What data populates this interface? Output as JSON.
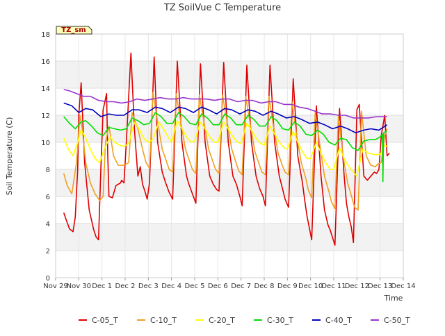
{
  "chart_data": {
    "type": "line",
    "title": "TZ SoilVue C Temperature",
    "ylabel": "Soil Temperature (C)",
    "xlabel": "Time",
    "station_label": "TZ_sm",
    "ylim": [
      0,
      18
    ],
    "yticks": [
      0,
      2,
      4,
      6,
      8,
      10,
      12,
      14,
      16,
      18
    ],
    "xlim": [
      0,
      15
    ],
    "x_unit": "days from Nov 29",
    "xticks": [
      {
        "value": 0,
        "label": "Nov 29"
      },
      {
        "value": 1,
        "label": "Nov 30"
      },
      {
        "value": 2,
        "label": "Dec 1"
      },
      {
        "value": 3,
        "label": "Dec 2"
      },
      {
        "value": 4,
        "label": "Dec 3"
      },
      {
        "value": 5,
        "label": "Dec 4"
      },
      {
        "value": 6,
        "label": "Dec 5"
      },
      {
        "value": 7,
        "label": "Dec 6"
      },
      {
        "value": 8,
        "label": "Dec 7"
      },
      {
        "value": 9,
        "label": "Dec 8"
      },
      {
        "value": 10,
        "label": "Dec 9"
      },
      {
        "value": 11,
        "label": "Dec 10"
      },
      {
        "value": 12,
        "label": "Dec 11"
      },
      {
        "value": 13,
        "label": "Dec 12"
      },
      {
        "value": 14,
        "label": "Dec 13"
      },
      {
        "value": 15,
        "label": "Dec 14"
      }
    ],
    "grid": true,
    "legend_position": "bottom",
    "series": [
      {
        "name": "C-05_T",
        "color": "#dd0000",
        "x": [
          0.35,
          0.45,
          0.6,
          0.75,
          0.85,
          0.95,
          1.0,
          1.1,
          1.25,
          1.45,
          1.65,
          1.75,
          1.85,
          1.95,
          2.05,
          2.2,
          2.25,
          2.3,
          2.45,
          2.6,
          2.7,
          2.8,
          2.85,
          2.95,
          3.05,
          3.25,
          3.4,
          3.55,
          3.65,
          3.75,
          3.85,
          3.95,
          4.05,
          4.25,
          4.4,
          4.6,
          4.75,
          4.9,
          5.05,
          5.25,
          5.45,
          5.65,
          5.75,
          5.9,
          6.05,
          6.25,
          6.45,
          6.65,
          6.8,
          6.95,
          7.05,
          7.25,
          7.45,
          7.65,
          7.8,
          7.95,
          8.05,
          8.25,
          8.45,
          8.65,
          8.8,
          8.95,
          9.05,
          9.25,
          9.45,
          9.65,
          9.8,
          9.9,
          10.05,
          10.25,
          10.45,
          10.65,
          10.75,
          10.85,
          11.05,
          11.25,
          11.45,
          11.6,
          11.75,
          11.85,
          12.05,
          12.25,
          12.45,
          12.55,
          12.65,
          12.75,
          12.85,
          13.0,
          13.1,
          13.3,
          13.45,
          13.6,
          13.75,
          13.85,
          13.95,
          14.05,
          14.2,
          14.3,
          14.4
        ],
        "y": [
          4.8,
          4.3,
          3.6,
          3.4,
          4.5,
          8.0,
          12.0,
          14.4,
          8.5,
          5.0,
          3.5,
          3.0,
          2.8,
          8.0,
          12.4,
          13.6,
          9.0,
          6.0,
          5.9,
          6.8,
          6.9,
          7.0,
          7.2,
          7.0,
          10.0,
          16.6,
          11.0,
          7.5,
          8.2,
          6.9,
          6.4,
          5.8,
          7.0,
          16.3,
          10.0,
          7.8,
          7.0,
          6.3,
          5.8,
          16.0,
          10.0,
          7.5,
          6.9,
          6.2,
          5.5,
          15.8,
          10.0,
          7.5,
          6.9,
          6.5,
          6.4,
          15.9,
          10.0,
          7.5,
          6.9,
          6.0,
          5.3,
          15.7,
          10.0,
          7.5,
          6.6,
          6.0,
          5.3,
          15.7,
          10.0,
          7.5,
          6.5,
          5.8,
          5.2,
          14.7,
          9.0,
          7.0,
          5.7,
          4.5,
          2.8,
          12.7,
          7.5,
          5.0,
          3.9,
          3.5,
          2.4,
          12.5,
          7.5,
          5.5,
          4.5,
          3.8,
          2.6,
          12.4,
          12.8,
          7.5,
          7.2,
          7.5,
          7.8,
          7.7,
          8.0,
          10.5,
          12.0,
          9.0,
          9.2
        ]
      },
      {
        "name": "C-10_T",
        "color": "#f0a020",
        "x": [
          0.35,
          0.5,
          0.7,
          0.9,
          1.05,
          1.15,
          1.3,
          1.5,
          1.7,
          1.9,
          2.05,
          2.15,
          2.3,
          2.5,
          2.7,
          2.9,
          3.05,
          3.15,
          3.3,
          3.55,
          3.75,
          3.9,
          4.05,
          4.2,
          4.4,
          4.6,
          4.8,
          4.9,
          5.05,
          5.2,
          5.4,
          5.6,
          5.8,
          5.9,
          6.05,
          6.2,
          6.4,
          6.6,
          6.8,
          6.9,
          7.05,
          7.2,
          7.4,
          7.6,
          7.8,
          7.9,
          8.05,
          8.2,
          8.4,
          8.6,
          8.8,
          8.9,
          9.05,
          9.2,
          9.4,
          9.6,
          9.8,
          9.9,
          10.05,
          10.2,
          10.4,
          10.6,
          10.8,
          10.9,
          11.05,
          11.2,
          11.4,
          11.6,
          11.8,
          11.9,
          12.05,
          12.2,
          12.4,
          12.6,
          12.8,
          12.9,
          13.05,
          13.2,
          13.4,
          13.6,
          13.8,
          13.9,
          14.05,
          14.2,
          14.3
        ],
        "y": [
          7.7,
          6.8,
          6.2,
          8.5,
          12.0,
          11.0,
          8.5,
          7.0,
          6.2,
          5.7,
          6.0,
          10.0,
          11.2,
          9.0,
          8.3,
          8.3,
          8.4,
          8.5,
          12.2,
          11.0,
          9.5,
          8.5,
          8.1,
          13.7,
          11.5,
          9.5,
          8.5,
          8.0,
          7.8,
          13.6,
          11.5,
          9.5,
          8.5,
          8.0,
          7.7,
          13.5,
          11.5,
          9.5,
          8.5,
          8.0,
          7.7,
          13.5,
          11.5,
          9.5,
          8.4,
          7.9,
          7.6,
          13.4,
          11.3,
          9.3,
          8.3,
          7.8,
          7.6,
          13.4,
          11.2,
          9.2,
          8.2,
          7.8,
          7.6,
          13.0,
          10.5,
          8.5,
          7.3,
          6.5,
          5.9,
          12.2,
          9.8,
          7.5,
          6.3,
          5.6,
          5.1,
          12.0,
          9.0,
          7.0,
          5.8,
          5.2,
          5.0,
          12.3,
          9.0,
          8.3,
          8.2,
          8.4,
          8.5,
          10.5,
          11.0
        ]
      },
      {
        "name": "C-20_T",
        "color": "#ffff00",
        "x": [
          0.35,
          0.55,
          0.75,
          0.95,
          1.1,
          1.25,
          1.5,
          1.7,
          1.9,
          2.1,
          2.35,
          2.55,
          2.75,
          2.95,
          3.15,
          3.4,
          3.6,
          3.8,
          4.0,
          4.2,
          4.45,
          4.65,
          4.85,
          5.0,
          5.25,
          5.45,
          5.65,
          5.85,
          6.0,
          6.25,
          6.45,
          6.65,
          6.85,
          7.0,
          7.25,
          7.45,
          7.65,
          7.85,
          8.0,
          8.25,
          8.45,
          8.65,
          8.85,
          9.0,
          9.25,
          9.45,
          9.65,
          9.85,
          10.0,
          10.25,
          10.45,
          10.65,
          10.85,
          11.0,
          11.25,
          11.45,
          11.65,
          11.85,
          12.0,
          12.25,
          12.45,
          12.65,
          12.85,
          13.0,
          13.25,
          13.5,
          13.75,
          14.0,
          14.2,
          14.3
        ],
        "y": [
          10.3,
          9.5,
          9.0,
          10.0,
          10.9,
          10.5,
          9.5,
          8.8,
          8.5,
          9.5,
          10.4,
          10.0,
          9.8,
          9.7,
          9.9,
          11.5,
          11.0,
          10.3,
          10.0,
          10.2,
          11.5,
          11.0,
          10.4,
          10.0,
          11.6,
          11.0,
          10.4,
          10.0,
          10.1,
          11.5,
          11.0,
          10.4,
          10.0,
          10.0,
          11.5,
          11.0,
          10.4,
          10.0,
          9.9,
          11.4,
          10.9,
          10.3,
          9.9,
          9.8,
          11.2,
          10.6,
          10.0,
          9.6,
          9.5,
          10.8,
          10.0,
          9.3,
          8.8,
          8.8,
          10.0,
          9.2,
          8.5,
          8.0,
          8.0,
          9.6,
          8.8,
          8.2,
          7.8,
          7.5,
          9.5,
          9.2,
          9.1,
          9.1,
          9.8,
          9.7
        ]
      },
      {
        "name": "C-30_T",
        "color": "#00dd00",
        "x": [
          0.35,
          0.6,
          0.85,
          1.1,
          1.3,
          1.55,
          1.8,
          2.05,
          2.3,
          2.55,
          2.8,
          3.05,
          3.3,
          3.55,
          3.8,
          4.05,
          4.3,
          4.55,
          4.8,
          5.05,
          5.3,
          5.55,
          5.8,
          6.05,
          6.3,
          6.55,
          6.8,
          7.05,
          7.3,
          7.55,
          7.8,
          8.05,
          8.3,
          8.55,
          8.8,
          9.05,
          9.3,
          9.55,
          9.8,
          10.05,
          10.3,
          10.55,
          10.8,
          11.05,
          11.3,
          11.55,
          11.8,
          12.05,
          12.3,
          12.55,
          12.8,
          13.05,
          13.3,
          13.55,
          13.8,
          14.0,
          14.1,
          14.12,
          14.15,
          14.25,
          14.3
        ],
        "y": [
          11.9,
          11.4,
          11.0,
          11.5,
          11.6,
          11.2,
          10.7,
          10.5,
          11.1,
          11.0,
          10.9,
          11.0,
          11.8,
          11.6,
          11.3,
          11.4,
          12.2,
          11.9,
          11.4,
          11.4,
          12.2,
          11.9,
          11.4,
          11.3,
          12.1,
          11.8,
          11.3,
          11.3,
          12.1,
          11.8,
          11.3,
          11.3,
          12.0,
          11.7,
          11.2,
          11.2,
          11.9,
          11.6,
          11.0,
          10.9,
          11.5,
          11.2,
          10.6,
          10.5,
          10.9,
          10.6,
          10.0,
          9.8,
          10.3,
          10.2,
          9.6,
          9.4,
          10.1,
          10.2,
          10.2,
          10.4,
          10.6,
          7.1,
          10.7,
          10.8,
          10.8
        ]
      },
      {
        "name": "C-40_T",
        "color": "#0000bb",
        "x": [
          0.35,
          0.7,
          1.0,
          1.3,
          1.6,
          1.95,
          2.3,
          2.6,
          2.95,
          3.3,
          3.6,
          3.95,
          4.3,
          4.6,
          4.95,
          5.3,
          5.6,
          5.95,
          6.3,
          6.6,
          6.95,
          7.3,
          7.6,
          7.95,
          8.3,
          8.6,
          8.95,
          9.3,
          9.6,
          9.95,
          10.3,
          10.6,
          10.95,
          11.3,
          11.6,
          11.95,
          12.3,
          12.6,
          12.95,
          13.3,
          13.6,
          13.95,
          14.3
        ],
        "y": [
          12.9,
          12.7,
          12.2,
          12.5,
          12.4,
          11.9,
          12.1,
          12.0,
          12.0,
          12.4,
          12.4,
          12.2,
          12.6,
          12.5,
          12.2,
          12.6,
          12.5,
          12.2,
          12.6,
          12.4,
          12.1,
          12.5,
          12.4,
          12.1,
          12.4,
          12.3,
          12.0,
          12.3,
          12.1,
          11.8,
          11.9,
          11.7,
          11.4,
          11.5,
          11.3,
          11.0,
          11.2,
          11.0,
          10.7,
          10.9,
          11.0,
          10.9,
          11.3
        ]
      },
      {
        "name": "C-50_T",
        "color": "#9933cc",
        "x": [
          0.35,
          0.6,
          0.9,
          1.2,
          1.5,
          1.85,
          2.2,
          2.5,
          2.85,
          3.2,
          3.5,
          3.85,
          4.2,
          4.5,
          4.85,
          5.2,
          5.5,
          5.85,
          6.2,
          6.5,
          6.85,
          7.2,
          7.5,
          7.85,
          8.2,
          8.5,
          8.85,
          9.2,
          9.5,
          9.85,
          10.2,
          10.5,
          10.85,
          11.2,
          11.5,
          11.85,
          12.2,
          12.5,
          12.85,
          13.2,
          13.5,
          13.85,
          14.3
        ],
        "y": [
          13.9,
          13.8,
          13.6,
          13.4,
          13.4,
          13.1,
          13.0,
          13.0,
          12.9,
          13.0,
          13.2,
          13.1,
          13.2,
          13.3,
          13.2,
          13.2,
          13.3,
          13.2,
          13.2,
          13.2,
          13.1,
          13.2,
          13.2,
          13.0,
          13.1,
          13.1,
          12.9,
          13.0,
          13.0,
          12.8,
          12.8,
          12.6,
          12.5,
          12.3,
          12.1,
          12.1,
          12.0,
          12.0,
          11.8,
          11.8,
          11.8,
          11.9,
          11.9
        ]
      }
    ]
  }
}
